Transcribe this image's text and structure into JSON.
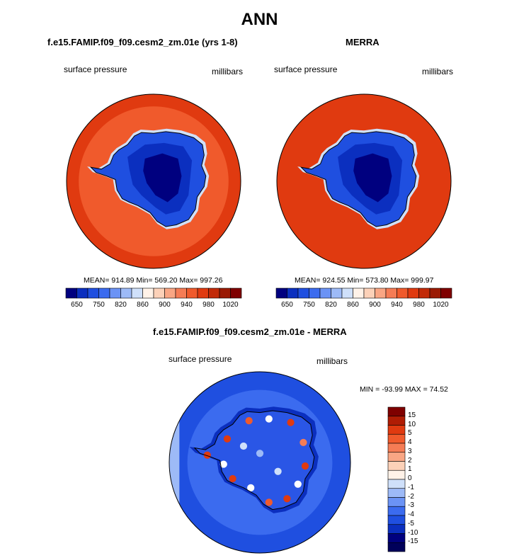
{
  "header": {
    "title": "ANN"
  },
  "panels": [
    {
      "title": "f.e15.FAMIP.f09_f09.cesm2_zm.01e (yrs 1-8)",
      "left_label": "surface pressure",
      "right_label": "millibars",
      "stats": "MEAN= 914.89  Min= 569.20  Max= 997.26"
    },
    {
      "title": "MERRA",
      "left_label": "surface pressure",
      "right_label": "millibars",
      "stats": "MEAN= 924.55  Min= 573.80  Max= 999.97"
    },
    {
      "title": "f.e15.FAMIP.f09_f09.cesm2_zm.01e - MERRA",
      "left_label": "surface pressure",
      "right_label": "millibars",
      "stats": "MIN = -93.99 MAX =  74.52"
    }
  ],
  "colorbar_abs": {
    "tick_labels": [
      "650",
      "750",
      "820",
      "860",
      "900",
      "940",
      "980",
      "1020"
    ],
    "colors": [
      "#00007f",
      "#0b2fbf",
      "#1f4fe0",
      "#3b6bef",
      "#6b93f5",
      "#9dbaf7",
      "#cfe0fa",
      "#fff2e8",
      "#fcd1b8",
      "#f9a684",
      "#f57c55",
      "#f05a2c",
      "#e03a10",
      "#c22a08",
      "#9a1a04",
      "#7f0000"
    ]
  },
  "colorbar_diff": {
    "tick_labels": [
      "15",
      "10",
      "5",
      "4",
      "3",
      "2",
      "1",
      "0",
      "-1",
      "-2",
      "-3",
      "-4",
      "-5",
      "-10",
      "-15"
    ],
    "colors": [
      "#7f0000",
      "#b01c04",
      "#e03a10",
      "#f05a2c",
      "#f57c55",
      "#f9a684",
      "#fcd1b8",
      "#fff2e8",
      "#cfe0fa",
      "#9dbaf7",
      "#6b93f5",
      "#3b6bef",
      "#1f4fe0",
      "#0b2fbf",
      "#00007f",
      "#00005a"
    ]
  },
  "chart_data": [
    {
      "type": "heatmap",
      "title": "f.e15.FAMIP.f09_f09.cesm2_zm.01e (yrs 1-8)",
      "variable": "surface pressure",
      "units": "millibars",
      "mean": 914.89,
      "min": 569.2,
      "max": 997.26,
      "levels": [
        650,
        750,
        820,
        860,
        900,
        940,
        980,
        1020
      ],
      "projection": "south polar stereographic"
    },
    {
      "type": "heatmap",
      "title": "MERRA",
      "variable": "surface pressure",
      "units": "millibars",
      "mean": 924.55,
      "min": 573.8,
      "max": 999.97,
      "levels": [
        650,
        750,
        820,
        860,
        900,
        940,
        980,
        1020
      ],
      "projection": "south polar stereographic"
    },
    {
      "type": "heatmap",
      "title": "f.e15.FAMIP.f09_f09.cesm2_zm.01e - MERRA",
      "variable": "surface pressure",
      "units": "millibars",
      "min": -93.99,
      "max": 74.52,
      "levels": [
        -15,
        -10,
        -5,
        -4,
        -3,
        -2,
        -1,
        0,
        1,
        2,
        3,
        4,
        5,
        10,
        15
      ],
      "projection": "south polar stereographic"
    }
  ]
}
